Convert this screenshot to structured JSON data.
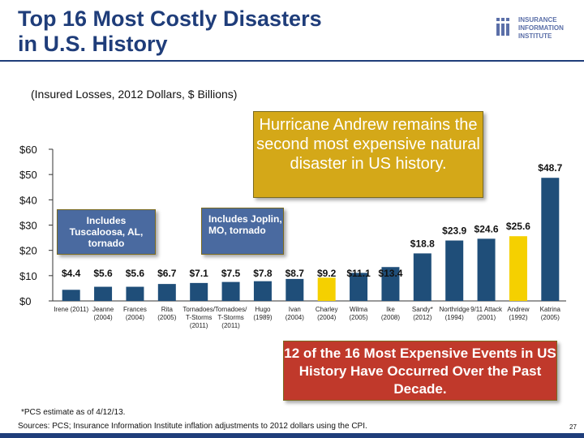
{
  "header": {
    "title_line1": "Top 16 Most Costly Disasters",
    "title_line2": "in U.S. History",
    "subtitle": "(Insured Losses, 2012 Dollars, $ Billions)"
  },
  "logo": {
    "icon": "iii-logo-icon",
    "line1": "INSURANCE",
    "line2": "INFORMATION",
    "line3": "INSTITUTE"
  },
  "callouts": {
    "andrew": "Hurricane Andrew remains the second most expensive natural disaster in US history.",
    "tuscaloosa": "Includes Tuscaloosa, AL, tornado",
    "joplin": "Includes Joplin, MO, tornado",
    "decade": "12 of the 16 Most Expensive Events in US History Have Occurred Over the Past Decade."
  },
  "footer": {
    "footnote": "*PCS estimate as of 4/12/13.",
    "sources": "Sources: PCS; Insurance Information Institute inflation adjustments to 2012 dollars using the CPI.",
    "page_number": "27"
  },
  "colors": {
    "bar": "#1f4e79",
    "bar_highlight": "#f5d000",
    "title": "#1f3d7a"
  },
  "chart_data": {
    "type": "bar",
    "ylim": [
      0,
      60
    ],
    "yticks": [
      0,
      10,
      20,
      30,
      40,
      50,
      60
    ],
    "ytick_labels": [
      "$0",
      "$10",
      "$20",
      "$30",
      "$40",
      "$50",
      "$60"
    ],
    "categories": [
      [
        "Irene (2011)"
      ],
      [
        "Jeanne",
        "(2004)"
      ],
      [
        "Frances",
        "(2004)"
      ],
      [
        "Rita",
        "(2005)"
      ],
      [
        "Tornadoes/",
        "T-Storms",
        "(2011)"
      ],
      [
        "Tornadoes/",
        "T-Storms",
        "(2011)"
      ],
      [
        "Hugo",
        "(1989)"
      ],
      [
        "Ivan",
        "(2004)"
      ],
      [
        "Charley",
        "(2004)"
      ],
      [
        "Wilma",
        "(2005)"
      ],
      [
        "Ike",
        "(2008)"
      ],
      [
        "Sandy*",
        "(2012)"
      ],
      [
        "Northridge",
        "(1994)"
      ],
      [
        "9/11 Attack",
        "(2001)"
      ],
      [
        "Andrew",
        "(1992)"
      ],
      [
        "Katrina",
        "(2005)"
      ]
    ],
    "values": [
      4.4,
      5.6,
      5.6,
      6.7,
      7.1,
      7.5,
      7.8,
      8.7,
      9.2,
      11.1,
      13.4,
      18.8,
      23.9,
      24.6,
      25.6,
      48.7
    ],
    "value_labels": [
      "$4.4",
      "$5.6",
      "$5.6",
      "$6.7",
      "$7.1",
      "$7.5",
      "$7.8",
      "$8.7",
      "$9.2",
      "$11.1",
      "$13.4",
      "$18.8",
      "$23.9",
      "$24.6",
      "$25.6",
      "$48.7"
    ],
    "highlight_index": [
      8,
      14
    ],
    "grid": false,
    "xlabel": "",
    "ylabel": ""
  }
}
